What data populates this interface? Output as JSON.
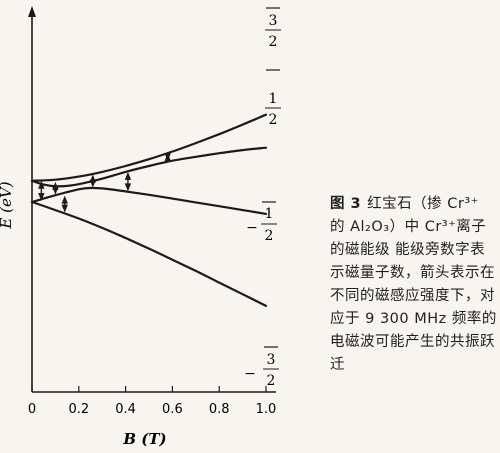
{
  "figure": {
    "y_axis_label": "E (eV)",
    "x_axis_label": "B (T)",
    "x_ticks": [
      "0",
      "0.2",
      "0.4",
      "0.6",
      "0.8",
      "1.0"
    ],
    "level_labels": [
      {
        "sign": "",
        "num": "3",
        "den": "2"
      },
      {
        "sign": "",
        "num": "1",
        "den": "2"
      },
      {
        "sign": "−",
        "num": "1",
        "den": "2"
      },
      {
        "sign": "−",
        "num": "3",
        "den": "2"
      }
    ],
    "caption_number": "图 3",
    "caption_text": "红宝石（掺 Cr³⁺ 的 Al₂O₃）中 Cr³⁺离子的磁能级 能级旁数字表示磁量子数，箭头表示在不同的磁感应强度下，对应于 9 300 MHz 频率的电磁波可能产生的共振跃迁"
  },
  "chart_data": {
    "type": "line",
    "xlabel": "B (T)",
    "ylabel": "E (eV)",
    "x_ticks": [
      0,
      0.2,
      0.4,
      0.6,
      0.8,
      1.0
    ],
    "series": [
      {
        "name": "3/2",
        "x": [
          0,
          0.1,
          0.2,
          0.3,
          0.4,
          0.5,
          0.6,
          0.7,
          0.8,
          0.9,
          1.0
        ],
        "y": [
          1.0,
          1.05,
          1.2,
          1.42,
          1.7,
          2.02,
          2.38,
          2.78,
          3.2,
          3.65,
          4.12
        ]
      },
      {
        "name": "1/2",
        "x": [
          0,
          0.05,
          0.1,
          0.15,
          0.2,
          0.3,
          0.4,
          0.5,
          0.6,
          0.7,
          0.8,
          0.9,
          1.0
        ],
        "y": [
          1.0,
          0.82,
          0.74,
          0.76,
          0.84,
          1.1,
          1.42,
          1.7,
          1.95,
          2.13,
          2.3,
          2.45,
          2.56
        ]
      },
      {
        "name": "-1/2",
        "x": [
          0,
          0.1,
          0.2,
          0.25,
          0.3,
          0.4,
          0.5,
          0.6,
          0.7,
          0.8,
          0.9,
          1.0
        ],
        "y": [
          0.0,
          0.32,
          0.6,
          0.66,
          0.64,
          0.5,
          0.34,
          0.16,
          -0.02,
          -0.2,
          -0.38,
          -0.56
        ]
      },
      {
        "name": "-3/2",
        "x": [
          0,
          0.1,
          0.2,
          0.3,
          0.4,
          0.5,
          0.6,
          0.7,
          0.8,
          0.9,
          1.0
        ],
        "y": [
          0.0,
          -0.38,
          -0.78,
          -1.22,
          -1.7,
          -2.2,
          -2.72,
          -3.25,
          -3.8,
          -4.35,
          -4.9
        ]
      }
    ],
    "transitions": [
      {
        "x": 0.04,
        "from": 0.05,
        "to": 1.0
      },
      {
        "x": 0.1,
        "from": 0.35,
        "to": 0.95
      },
      {
        "x": 0.14,
        "from": -0.5,
        "to": 0.3
      },
      {
        "x": 0.26,
        "from": 0.68,
        "to": 1.3
      },
      {
        "x": 0.41,
        "from": 0.5,
        "to": 1.42
      },
      {
        "x": 0.58,
        "from": 1.93,
        "to": 2.3
      }
    ],
    "xlim": [
      0,
      1.1
    ],
    "ylim": [
      -5.4,
      4.8
    ]
  }
}
